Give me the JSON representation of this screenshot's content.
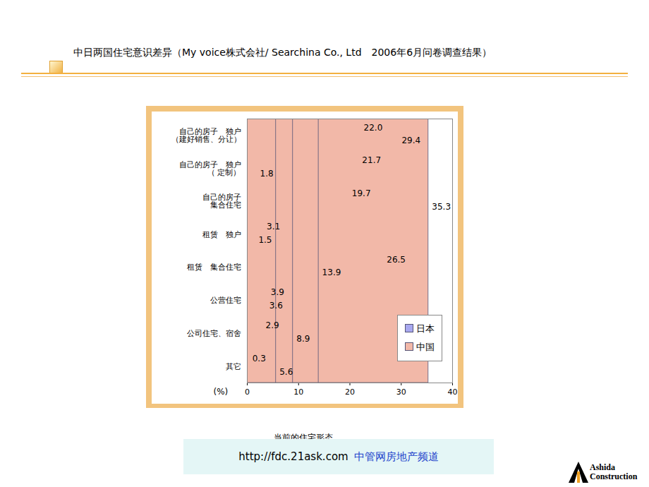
{
  "slide": {
    "title": "中日两国住宅意识差异（My voice株式会社/ Searchina Co., Ltd　2006年6月问卷调查结果）",
    "caption": "当前的住宅形态",
    "url": "http://fdc.21ask.com",
    "site": "中管网房地产频道",
    "logo": [
      "Ashida",
      "Construction"
    ]
  },
  "chart_data": {
    "type": "bar",
    "orientation": "horizontal",
    "categories": [
      "自己的房子　独户\n（建好销售、分让）",
      "自己的房子　独户\n（ 定制）",
      "自己的房子\n集合住宅",
      "租赁　独户",
      "租赁　集合住宅",
      "公营住宅",
      "公司住宅、宿舍",
      "其它"
    ],
    "series": [
      {
        "name": "日本",
        "color": "#a8a8f0",
        "values": [
          22.0,
          21.7,
          19.7,
          3.1,
          26.5,
          3.9,
          2.9,
          0.3
        ],
        "value_labels": [
          "22.0",
          "21.7",
          "19.7",
          "3.1",
          "26.5",
          "3.9",
          "2.9",
          "0.3"
        ]
      },
      {
        "name": "中国",
        "color": "#f2b8a8",
        "values": [
          29.4,
          1.8,
          35.3,
          1.5,
          13.9,
          3.6,
          8.9,
          5.6
        ],
        "value_labels": [
          "29.4",
          "1.8",
          "35.3",
          "1.5",
          "13.9",
          "3.6",
          "8.9",
          "5.6"
        ]
      }
    ],
    "xlabel": "(%)",
    "xlim": [
      0,
      40
    ],
    "xticks": [
      0,
      10,
      20,
      30,
      40
    ],
    "grid": false,
    "data_labels": true,
    "legend": "lower right"
  }
}
